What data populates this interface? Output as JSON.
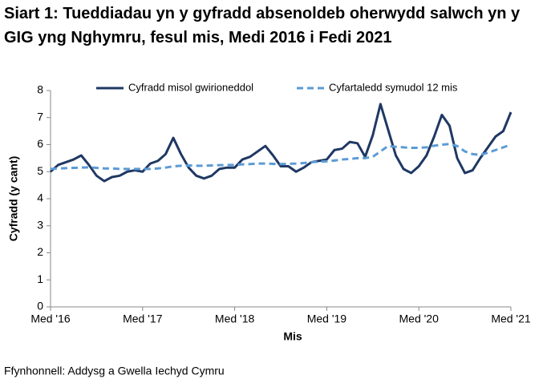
{
  "chart_data": {
    "type": "line",
    "title": "Siart 1: Tueddiadau yn y gyfradd absenoldeb oherwydd salwch yn y GIG yng Nghymru, fesul mis, Medi 2016 i Fedi 2021",
    "x_label": "Mis",
    "y_label": "Cyfradd (y cant)",
    "source": "Ffynhonnell: Addysg a Gwella Iechyd Cymru",
    "categories": [
      "Med '16",
      null,
      null,
      null,
      null,
      null,
      null,
      null,
      null,
      null,
      null,
      null,
      "Med '17",
      null,
      null,
      null,
      null,
      null,
      null,
      null,
      null,
      null,
      null,
      null,
      "Med '18",
      null,
      null,
      null,
      null,
      null,
      null,
      null,
      null,
      null,
      null,
      null,
      "Med '19",
      null,
      null,
      null,
      null,
      null,
      null,
      null,
      null,
      null,
      null,
      null,
      "Med '20",
      null,
      null,
      null,
      null,
      null,
      null,
      null,
      null,
      null,
      null,
      null,
      "Med '21"
    ],
    "series": [
      {
        "name": "Cyfradd misol gwirioneddol",
        "color": "#1f3864",
        "dash": false,
        "values": [
          5.0,
          5.25,
          5.35,
          5.45,
          5.6,
          5.25,
          4.85,
          4.65,
          4.8,
          4.85,
          5.0,
          5.05,
          5.0,
          5.3,
          5.4,
          5.65,
          6.25,
          5.65,
          5.15,
          4.85,
          4.75,
          4.85,
          5.1,
          5.15,
          5.15,
          5.45,
          5.55,
          5.75,
          5.95,
          5.6,
          5.2,
          5.2,
          5.0,
          5.15,
          5.35,
          5.4,
          5.45,
          5.8,
          5.85,
          6.1,
          6.05,
          5.55,
          6.35,
          7.5,
          6.55,
          5.6,
          5.1,
          4.95,
          5.2,
          5.6,
          6.3,
          7.1,
          6.7,
          5.5,
          4.95,
          5.05,
          5.5,
          5.9,
          6.3,
          6.5,
          7.2
        ]
      },
      {
        "name": "Cyfartaledd symudol 12 mis",
        "color": "#5b9bd5",
        "dash": true,
        "values": [
          5.1,
          5.12,
          5.13,
          5.14,
          5.15,
          5.16,
          5.14,
          5.12,
          5.12,
          5.1,
          5.1,
          5.1,
          5.1,
          5.1,
          5.12,
          5.15,
          5.2,
          5.22,
          5.23,
          5.22,
          5.22,
          5.23,
          5.24,
          5.25,
          5.25,
          5.27,
          5.28,
          5.3,
          5.3,
          5.29,
          5.28,
          5.29,
          5.3,
          5.32,
          5.35,
          5.37,
          5.38,
          5.41,
          5.45,
          5.47,
          5.5,
          5.5,
          5.55,
          5.75,
          5.95,
          5.92,
          5.9,
          5.88,
          5.88,
          5.9,
          5.96,
          6.0,
          6.02,
          5.95,
          5.75,
          5.65,
          5.62,
          5.7,
          5.8,
          5.9,
          6.0
        ]
      }
    ],
    "ylim": [
      0,
      8
    ],
    "yticks": [
      0,
      1,
      2,
      3,
      4,
      5,
      6,
      7,
      8
    ],
    "grid": false
  }
}
